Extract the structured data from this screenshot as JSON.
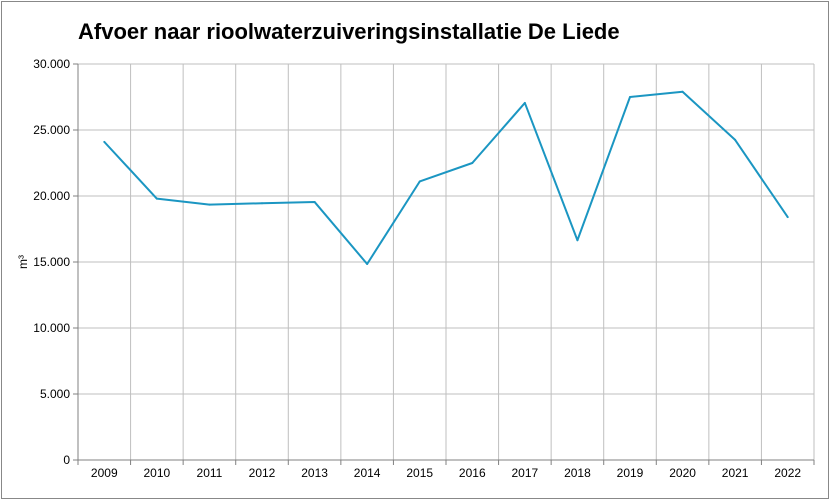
{
  "chart_data": {
    "type": "line",
    "title": "Afvoer naar rioolwaterzuiveringsinstallatie De Liede",
    "xlabel": "",
    "ylabel": "m³",
    "categories": [
      "2009",
      "2010",
      "2011",
      "2012",
      "2013",
      "2014",
      "2015",
      "2016",
      "2017",
      "2018",
      "2019",
      "2020",
      "2021",
      "2022"
    ],
    "series": [
      {
        "values": [
          24100,
          19800,
          19350,
          19450,
          19550,
          14850,
          21100,
          22500,
          27050,
          16650,
          27500,
          27900,
          24250,
          18400
        ]
      }
    ],
    "ylim": [
      0,
      30000
    ],
    "yticks": [
      0,
      5000,
      10000,
      15000,
      20000,
      25000,
      30000
    ],
    "ytick_labels": [
      "0",
      "5.000",
      "10.000",
      "15.000",
      "20.000",
      "25.000",
      "30.000"
    ],
    "grid": true,
    "legend": "none",
    "colors": {
      "line": "#1b96c2",
      "grid": "#bfbfbf",
      "axis": "#808080"
    }
  }
}
